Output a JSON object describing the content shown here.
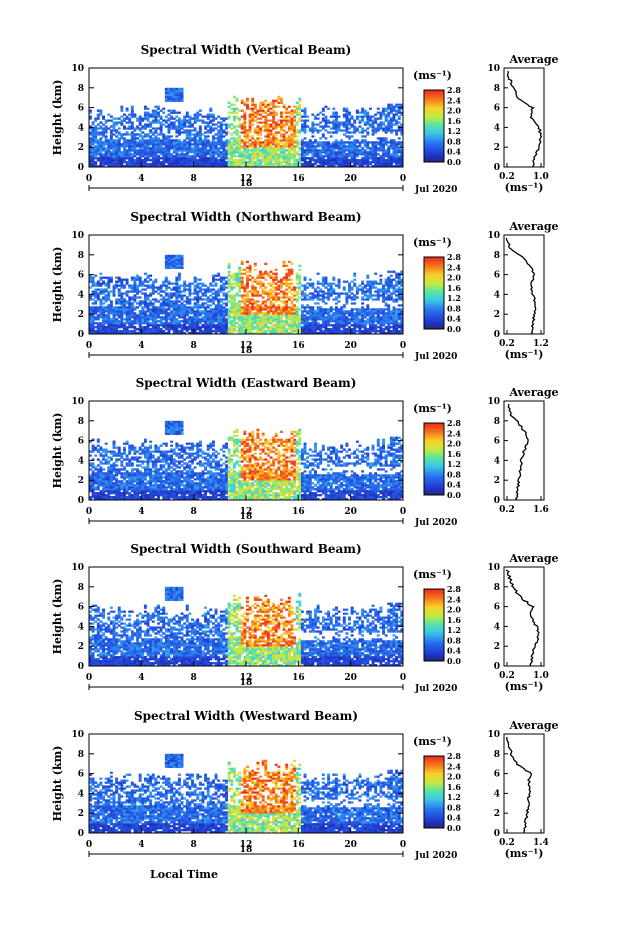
{
  "chart_data": [
    {
      "type": "heatmap",
      "title": "Spectral Width (Vertical Beam)",
      "ylabel": "Height (km)",
      "ylim": [
        0,
        10
      ],
      "yticks": [
        "0",
        "2",
        "4",
        "6",
        "8",
        "10"
      ],
      "xlim": [
        0,
        24
      ],
      "xticks": [
        "0",
        "4",
        "8",
        "12",
        "16",
        "20",
        "0"
      ],
      "date_marker": "18",
      "date_label": "Jul 2020",
      "colorbar": {
        "label": "(ms⁻¹)",
        "range": [
          0,
          2.8
        ],
        "ticks": [
          "2.8",
          "2.4",
          "2.0",
          "1.6",
          "1.2",
          "0.8",
          "0.4",
          "0.0"
        ]
      },
      "average_profile": {
        "title": "Average",
        "xlabel": "(ms⁻¹)",
        "xticks": [
          "0.2",
          "1.0"
        ],
        "xlim": [
          0.2,
          1.0
        ],
        "yticks": [
          "0",
          "2",
          "4",
          "6",
          "8",
          "10"
        ],
        "height_km": [
          0,
          1,
          2,
          3,
          4,
          5,
          6,
          7,
          8,
          9,
          9.7
        ],
        "width_ms": [
          0.8,
          0.85,
          0.95,
          1.0,
          0.95,
          0.75,
          0.8,
          0.45,
          0.35,
          0.25,
          0.2
        ]
      }
    },
    {
      "type": "heatmap",
      "title": "Spectral Width (Northward Beam)",
      "ylabel": "Height (km)",
      "ylim": [
        0,
        10
      ],
      "yticks": [
        "0",
        "2",
        "4",
        "6",
        "8",
        "10"
      ],
      "xlim": [
        0,
        24
      ],
      "xticks": [
        "0",
        "4",
        "8",
        "12",
        "16",
        "20",
        "0"
      ],
      "date_marker": "18",
      "date_label": "Jul 2020",
      "colorbar": {
        "label": "(ms⁻¹)",
        "range": [
          0,
          2.8
        ],
        "ticks": [
          "2.8",
          "2.4",
          "2.0",
          "1.6",
          "1.2",
          "0.8",
          "0.4",
          "0.0"
        ]
      },
      "average_profile": {
        "title": "Average",
        "xlabel": "(ms⁻¹)",
        "xticks": [
          "0.2",
          "1.2"
        ],
        "xlim": [
          0.2,
          1.2
        ],
        "yticks": [
          "0",
          "2",
          "4",
          "6",
          "8",
          "10"
        ],
        "height_km": [
          0,
          1,
          2,
          3,
          4,
          5,
          6,
          7,
          8,
          8.5,
          9,
          9.7
        ],
        "width_ms": [
          0.9,
          0.95,
          1.0,
          1.05,
          0.95,
          0.9,
          1.0,
          0.85,
          0.6,
          0.3,
          0.25,
          0.2
        ]
      }
    },
    {
      "type": "heatmap",
      "title": "Spectral Width (Eastward Beam)",
      "ylabel": "Height (km)",
      "ylim": [
        0,
        10
      ],
      "yticks": [
        "0",
        "2",
        "4",
        "6",
        "8",
        "10"
      ],
      "xlim": [
        0,
        24
      ],
      "xticks": [
        "0",
        "4",
        "8",
        "12",
        "16",
        "20",
        "0"
      ],
      "date_marker": "18",
      "date_label": "Jul 2020",
      "colorbar": {
        "label": "(ms⁻¹)",
        "range": [
          0,
          2.8
        ],
        "ticks": [
          "2.8",
          "2.4",
          "2.0",
          "1.6",
          "1.2",
          "0.8",
          "0.4",
          "0.0"
        ]
      },
      "average_profile": {
        "title": "Average",
        "xlabel": "",
        "xticks": [
          "0.2",
          "1.6"
        ],
        "xlim": [
          0.2,
          1.6
        ],
        "yticks": [
          "0",
          "2",
          "4",
          "6",
          "8",
          "10"
        ],
        "height_km": [
          0,
          1,
          2,
          3,
          4,
          5,
          6,
          7,
          8,
          8.5,
          9,
          9.7
        ],
        "width_ms": [
          0.6,
          0.65,
          0.7,
          0.75,
          0.8,
          0.9,
          1.1,
          0.9,
          0.6,
          0.4,
          0.3,
          0.25
        ]
      }
    },
    {
      "type": "heatmap",
      "title": "Spectral Width (Southward Beam)",
      "ylabel": "Height (km)",
      "ylim": [
        0,
        10
      ],
      "yticks": [
        "0",
        "2",
        "4",
        "6",
        "8",
        "10"
      ],
      "xlim": [
        0,
        24
      ],
      "xticks": [
        "0",
        "4",
        "8",
        "12",
        "16",
        "20",
        "0"
      ],
      "date_marker": "18",
      "date_label": "Jul 2020",
      "colorbar": {
        "label": "(ms⁻¹)",
        "range": [
          0,
          2.8
        ],
        "ticks": [
          "2.8",
          "2.4",
          "2.0",
          "1.6",
          "1.2",
          "0.8",
          "0.4",
          "0.0"
        ]
      },
      "average_profile": {
        "title": "Average",
        "xlabel": "(ms⁻¹)",
        "xticks": [
          "0.2",
          "1.0"
        ],
        "xlim": [
          0.2,
          1.0
        ],
        "yticks": [
          "0",
          "2",
          "4",
          "6",
          "8",
          "10"
        ],
        "height_km": [
          0,
          1,
          2,
          3,
          4,
          5,
          6,
          7,
          8,
          9,
          9.7
        ],
        "width_ms": [
          0.75,
          0.8,
          0.85,
          0.95,
          0.9,
          0.75,
          0.8,
          0.5,
          0.35,
          0.25,
          0.2
        ]
      }
    },
    {
      "type": "heatmap",
      "title": "Spectral Width (Westward Beam)",
      "ylabel": "Height (km)",
      "ylim": [
        0,
        10
      ],
      "yticks": [
        "0",
        "2",
        "4",
        "6",
        "8",
        "10"
      ],
      "xlim": [
        0,
        24
      ],
      "xticks": [
        "0",
        "4",
        "8",
        "12",
        "16",
        "20",
        "0"
      ],
      "date_marker": "18",
      "date_label": "Jul 2020",
      "xlabel": "Local Time",
      "colorbar": {
        "label": "(ms⁻¹)",
        "range": [
          0,
          2.8
        ],
        "ticks": [
          "2.8",
          "2.4",
          "2.0",
          "1.6",
          "1.2",
          "0.8",
          "0.4",
          "0.0"
        ]
      },
      "average_profile": {
        "title": "Average",
        "xlabel": "(ms⁻¹)",
        "xticks": [
          "0.2",
          "1.4"
        ],
        "xlim": [
          0.2,
          1.4
        ],
        "yticks": [
          "0",
          "2",
          "4",
          "6",
          "8",
          "10"
        ],
        "height_km": [
          0,
          1,
          2,
          3,
          4,
          5,
          6,
          7,
          8,
          9,
          9.7
        ],
        "width_ms": [
          0.8,
          0.85,
          0.9,
          0.95,
          1.0,
          0.95,
          1.05,
          0.55,
          0.35,
          0.25,
          0.2
        ]
      }
    }
  ]
}
